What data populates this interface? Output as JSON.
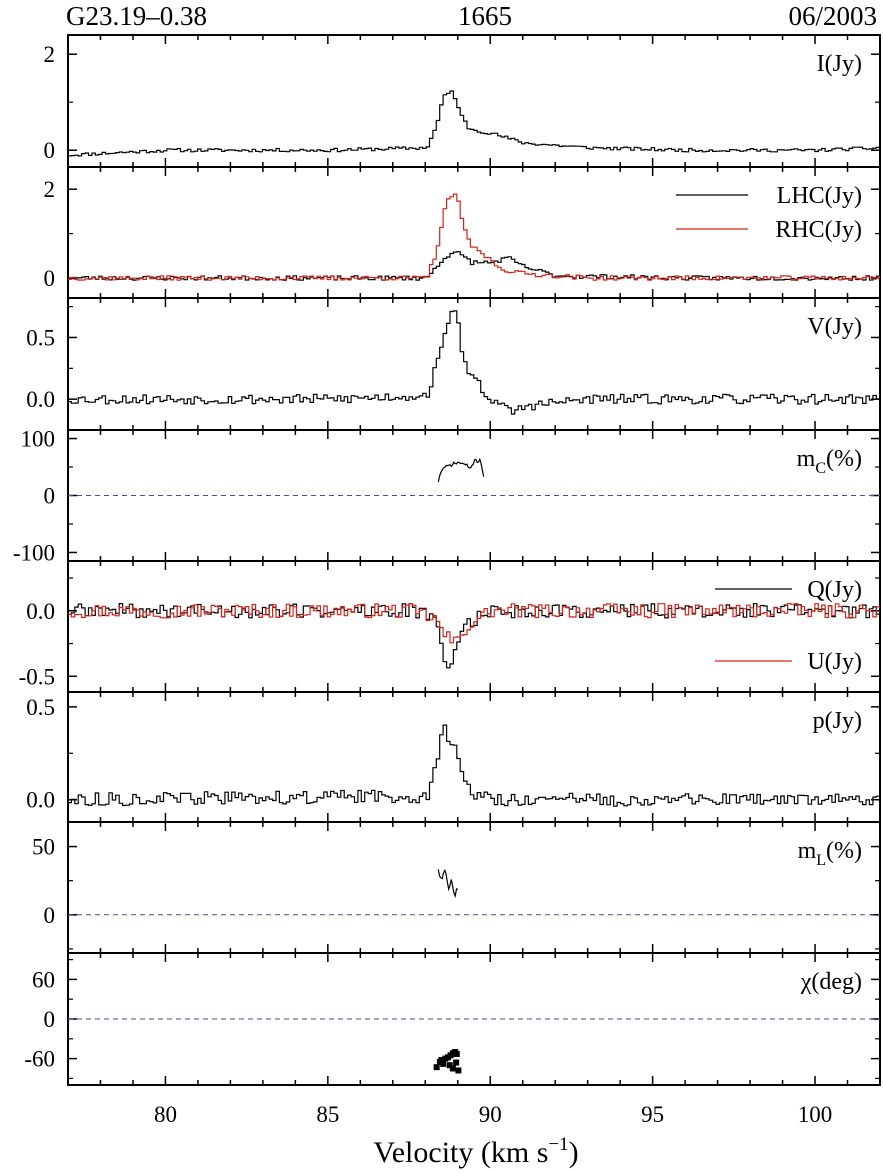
{
  "header": {
    "source": "G23.19–0.38",
    "frequency": "1665",
    "date": "06/2003"
  },
  "chart_data": {
    "type": "line",
    "xlabel": "Velocity (km s",
    "xlabel_exp": "−1",
    "xlabel_end": ")",
    "xlim": [
      77,
      102
    ],
    "xticks": [
      80,
      85,
      90,
      95,
      100
    ],
    "colors": {
      "primary": "#000000",
      "secondary": "#d62418",
      "zero_line": "#4a4aa8"
    },
    "panels": [
      {
        "id": "I",
        "label": "I(Jy)",
        "ylim": [
          -0.35,
          2.4
        ],
        "yticks": [
          {
            "v": 0,
            "t": "0"
          },
          {
            "v": 2,
            "t": "2"
          }
        ],
        "zero_line": false,
        "series": [
          {
            "name": "I(Jy)",
            "color": "primary",
            "style": "step",
            "noise": 0.035,
            "seed": 11,
            "points": [
              [
                77,
                -0.1
              ],
              [
                80,
                0.0
              ],
              [
                85,
                0.0
              ],
              [
                88.0,
                0.05
              ],
              [
                88.3,
                0.5
              ],
              [
                88.5,
                1.1
              ],
              [
                88.8,
                1.25
              ],
              [
                89.0,
                0.8
              ],
              [
                89.3,
                0.45
              ],
              [
                90.0,
                0.35
              ],
              [
                91.0,
                0.15
              ],
              [
                93,
                0.05
              ],
              [
                96,
                0.0
              ],
              [
                100,
                0.0
              ],
              [
                102,
                0.05
              ]
            ]
          }
        ]
      },
      {
        "id": "LR",
        "label": "",
        "ylim": [
          -0.45,
          2.5
        ],
        "yticks": [
          {
            "v": 0,
            "t": "0"
          },
          {
            "v": 2,
            "t": "2"
          }
        ],
        "zero_line": false,
        "legend": [
          "LHC(Jy)",
          "RHC(Jy)"
        ],
        "series": [
          {
            "name": "LHC(Jy)",
            "color": "primary",
            "style": "step",
            "noise": 0.05,
            "seed": 23,
            "points": [
              [
                77,
                0.0
              ],
              [
                85,
                0.0
              ],
              [
                88.0,
                0.0
              ],
              [
                88.4,
                0.35
              ],
              [
                88.7,
                0.55
              ],
              [
                89.0,
                0.55
              ],
              [
                89.4,
                0.35
              ],
              [
                90.0,
                0.35
              ],
              [
                90.5,
                0.45
              ],
              [
                91.0,
                0.25
              ],
              [
                92,
                0.05
              ],
              [
                96,
                0.0
              ],
              [
                102,
                0.0
              ]
            ]
          },
          {
            "name": "RHC(Jy)",
            "color": "secondary",
            "style": "step",
            "noise": 0.05,
            "seed": 37,
            "points": [
              [
                77,
                0.0
              ],
              [
                85,
                0.0
              ],
              [
                88.0,
                0.0
              ],
              [
                88.3,
                0.6
              ],
              [
                88.6,
                1.7
              ],
              [
                88.9,
                1.95
              ],
              [
                89.1,
                1.2
              ],
              [
                89.4,
                0.7
              ],
              [
                89.8,
                0.5
              ],
              [
                90.3,
                0.2
              ],
              [
                91,
                0.1
              ],
              [
                93,
                0.0
              ],
              [
                102,
                0.0
              ]
            ]
          }
        ]
      },
      {
        "id": "V",
        "label": "V(Jy)",
        "ylim": [
          -0.25,
          0.82
        ],
        "yticks": [
          {
            "v": 0.0,
            "t": "0.0"
          },
          {
            "v": 0.5,
            "t": "0.5"
          }
        ],
        "zero_line": false,
        "series": [
          {
            "name": "V(Jy)",
            "color": "primary",
            "style": "step",
            "noise": 0.04,
            "seed": 53,
            "points": [
              [
                77,
                0.0
              ],
              [
                85,
                0.0
              ],
              [
                88.0,
                0.03
              ],
              [
                88.4,
                0.35
              ],
              [
                88.7,
                0.7
              ],
              [
                88.9,
                0.75
              ],
              [
                89.1,
                0.3
              ],
              [
                89.4,
                0.2
              ],
              [
                89.8,
                0.05
              ],
              [
                90.2,
                -0.05
              ],
              [
                90.6,
                -0.1
              ],
              [
                91.2,
                -0.05
              ],
              [
                93,
                0.0
              ],
              [
                102,
                0.0
              ]
            ]
          }
        ]
      },
      {
        "id": "mc",
        "label": "m",
        "label_sub": "C",
        "label_end": "(%)",
        "ylim": [
          -115,
          115
        ],
        "yticks": [
          {
            "v": -100,
            "t": "-100"
          },
          {
            "v": 0,
            "t": "0"
          },
          {
            "v": 100,
            "t": "100"
          }
        ],
        "zero_line": true,
        "series": [
          {
            "name": "m_C(%)",
            "color": "primary",
            "style": "line",
            "noise": 3,
            "seed": 71,
            "points": [
              [
                88.4,
                25
              ],
              [
                88.5,
                45
              ],
              [
                88.7,
                52
              ],
              [
                89.0,
                58
              ],
              [
                89.2,
                55
              ],
              [
                89.4,
                48
              ],
              [
                89.5,
                60
              ],
              [
                89.7,
                62
              ],
              [
                89.8,
                35
              ]
            ]
          }
        ]
      },
      {
        "id": "QU",
        "label": "",
        "ylim": [
          -0.62,
          0.38
        ],
        "yticks": [
          {
            "v": -0.5,
            "t": "-0.5"
          },
          {
            "v": 0.0,
            "t": "0.0"
          }
        ],
        "zero_line": false,
        "legend": [
          "Q(Jy)",
          "U(Jy)"
        ],
        "series": [
          {
            "name": "Q(Jy)",
            "color": "primary",
            "style": "step",
            "noise": 0.055,
            "seed": 89,
            "points": [
              [
                77,
                0.0
              ],
              [
                87.5,
                0.0
              ],
              [
                88.2,
                -0.05
              ],
              [
                88.5,
                -0.3
              ],
              [
                88.7,
                -0.45
              ],
              [
                88.9,
                -0.25
              ],
              [
                89.2,
                -0.1
              ],
              [
                90,
                0.0
              ],
              [
                102,
                0.0
              ]
            ]
          },
          {
            "name": "U(Jy)",
            "color": "secondary",
            "style": "step",
            "noise": 0.055,
            "seed": 97,
            "points": [
              [
                77,
                0.0
              ],
              [
                87.5,
                0.0
              ],
              [
                88.2,
                -0.05
              ],
              [
                88.6,
                -0.2
              ],
              [
                88.9,
                -0.25
              ],
              [
                89.3,
                -0.1
              ],
              [
                90,
                0.0
              ],
              [
                102,
                0.0
              ]
            ]
          }
        ]
      },
      {
        "id": "p",
        "label": "p(Jy)",
        "ylim": [
          -0.12,
          0.58
        ],
        "yticks": [
          {
            "v": 0.0,
            "t": "0.0"
          },
          {
            "v": 0.5,
            "t": "0.5"
          }
        ],
        "zero_line": false,
        "series": [
          {
            "name": "p(Jy)",
            "color": "primary",
            "style": "step",
            "noise": 0.035,
            "seed": 113,
            "points": [
              [
                77,
                0.0
              ],
              [
                88.0,
                0.02
              ],
              [
                88.3,
                0.2
              ],
              [
                88.5,
                0.38
              ],
              [
                88.8,
                0.3
              ],
              [
                89.0,
                0.2
              ],
              [
                89.3,
                0.05
              ],
              [
                90,
                0.0
              ],
              [
                102,
                0.0
              ]
            ]
          }
        ]
      },
      {
        "id": "ml",
        "label": "m",
        "label_sub": "L",
        "label_end": "(%)",
        "ylim": [
          -28,
          68
        ],
        "yticks": [
          {
            "v": 0,
            "t": "0"
          },
          {
            "v": 50,
            "t": "50"
          }
        ],
        "zero_line": true,
        "series": [
          {
            "name": "m_L(%)",
            "color": "primary",
            "style": "line",
            "noise": 4,
            "seed": 131,
            "points": [
              [
                88.4,
                35
              ],
              [
                88.5,
                25
              ],
              [
                88.6,
                32
              ],
              [
                88.7,
                20
              ],
              [
                88.8,
                28
              ],
              [
                88.9,
                12
              ],
              [
                89.0,
                18
              ]
            ]
          }
        ]
      },
      {
        "id": "chi",
        "label": "χ(deg)",
        "ylim": [
          -100,
          100
        ],
        "yticks": [
          {
            "v": -60,
            "t": "-60"
          },
          {
            "v": 0,
            "t": "0"
          },
          {
            "v": 60,
            "t": "60"
          }
        ],
        "zero_line": true,
        "series": [
          {
            "name": "χ(deg)",
            "color": "primary",
            "style": "points",
            "points": [
              [
                88.35,
                -73
              ],
              [
                88.45,
                -65
              ],
              [
                88.5,
                -62
              ],
              [
                88.55,
                -68
              ],
              [
                88.62,
                -60
              ],
              [
                88.7,
                -58
              ],
              [
                88.78,
                -55
              ],
              [
                88.85,
                -52
              ],
              [
                88.92,
                -50
              ],
              [
                88.97,
                -53
              ],
              [
                88.75,
                -70
              ],
              [
                88.85,
                -75
              ],
              [
                89.02,
                -78
              ],
              [
                88.95,
                -66
              ]
            ]
          }
        ]
      }
    ]
  }
}
